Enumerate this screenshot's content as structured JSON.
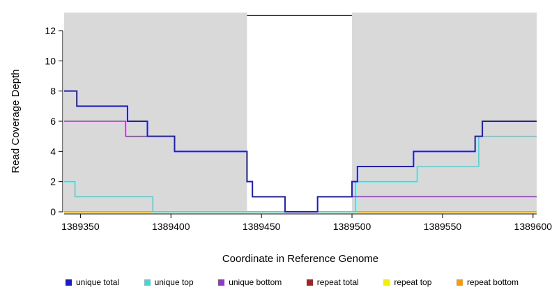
{
  "chart_data": {
    "type": "step-line",
    "title": "",
    "xlabel": "Coordinate in Reference Genome",
    "ylabel": "Read Coverage Depth",
    "xlim": [
      1389341,
      1389602
    ],
    "ylim": [
      0,
      13.2
    ],
    "x_ticks": [
      1389350,
      1389400,
      1389450,
      1389500,
      1389550,
      1389600
    ],
    "x_tick_labels": [
      "1389350",
      "1389400",
      "1389450",
      "1389500",
      "1389550",
      "1389600"
    ],
    "y_ticks": [
      0,
      2,
      4,
      6,
      8,
      10,
      12
    ],
    "y_tick_labels": [
      "0",
      "2",
      "4",
      "6",
      "8",
      "10",
      "12"
    ],
    "grid": false,
    "panel_color": "#d9d9d9",
    "background_color": "#ffffff",
    "shaded_regions": [
      {
        "x1": 1389341,
        "x2": 1389442
      },
      {
        "x1": 1389500,
        "x2": 1389602
      }
    ],
    "gap_marker": {
      "x1": 1389442,
      "x2": 1389500,
      "y": 13.0,
      "color": "#000000"
    },
    "legend_position": "bottom",
    "draw_order": [
      3,
      4,
      5,
      1,
      2,
      0
    ],
    "series": [
      {
        "name": "unique total",
        "color": "#1c1ccd",
        "line_width": 2,
        "steps": [
          [
            1389341,
            1389348,
            8
          ],
          [
            1389348,
            1389376,
            7
          ],
          [
            1389376,
            1389387,
            6
          ],
          [
            1389387,
            1389402,
            5
          ],
          [
            1389402,
            1389442,
            4
          ],
          [
            1389442,
            1389445,
            2
          ],
          [
            1389445,
            1389463,
            1
          ],
          [
            1389463,
            1389481,
            0
          ],
          [
            1389481,
            1389500,
            1
          ],
          [
            1389500,
            1389503,
            2
          ],
          [
            1389503,
            1389534,
            3
          ],
          [
            1389534,
            1389568,
            4
          ],
          [
            1389568,
            1389572,
            5
          ],
          [
            1389572,
            1389602,
            6
          ]
        ]
      },
      {
        "name": "unique top",
        "color": "#44d7d7",
        "line_width": 1.6,
        "steps": [
          [
            1389341,
            1389347,
            2
          ],
          [
            1389347,
            1389390,
            1
          ],
          [
            1389390,
            1389502,
            0
          ],
          [
            1389502,
            1389536,
            2
          ],
          [
            1389536,
            1389570,
            3
          ],
          [
            1389570,
            1389602,
            5
          ]
        ]
      },
      {
        "name": "unique bottom",
        "color": "#9933cc",
        "line_width": 1.6,
        "steps": [
          [
            1389341,
            1389375,
            6
          ],
          [
            1389375,
            1389402,
            5
          ],
          [
            1389402,
            1389442,
            4
          ],
          [
            1389442,
            1389445,
            2
          ],
          [
            1389445,
            1389463,
            1
          ],
          [
            1389463,
            1389481,
            0
          ],
          [
            1389481,
            1389602,
            1
          ]
        ]
      },
      {
        "name": "repeat total",
        "color": "#a02525",
        "line_width": 1.6,
        "steps": [
          [
            1389341,
            1389602,
            0
          ]
        ]
      },
      {
        "name": "repeat top",
        "color": "#f0f000",
        "line_width": 1.6,
        "steps": [
          [
            1389341,
            1389602,
            0
          ]
        ]
      },
      {
        "name": "repeat bottom",
        "color": "#ff9900",
        "line_width": 1.6,
        "steps": [
          [
            1389341,
            1389602,
            0
          ]
        ]
      }
    ]
  }
}
